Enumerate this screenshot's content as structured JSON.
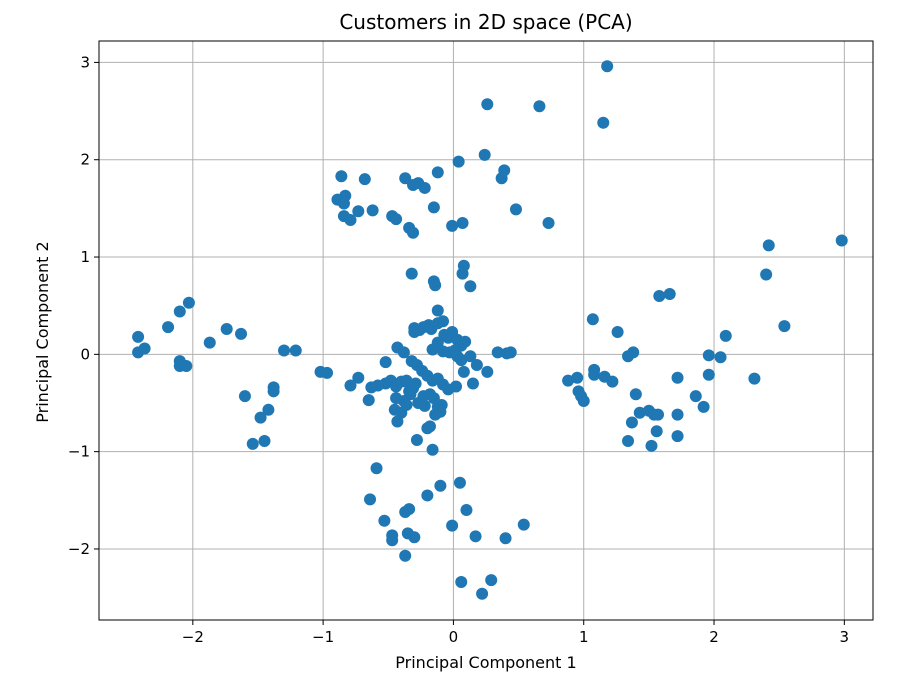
{
  "chart_data": {
    "type": "scatter",
    "title": "Customers in 2D space (PCA)",
    "xlabel": "Principal Component 1",
    "ylabel": "Principal Component 2",
    "xlim": [
      -2.72,
      3.22
    ],
    "ylim": [
      -2.73,
      3.22
    ],
    "xticks": [
      -2,
      -1,
      0,
      1,
      2,
      3
    ],
    "yticks": [
      -2,
      -1,
      0,
      1,
      2,
      3
    ],
    "grid": true,
    "marker_color": "#1f77b4",
    "points": [
      [
        -2.42,
        0.18
      ],
      [
        -2.42,
        0.02
      ],
      [
        -2.37,
        0.06
      ],
      [
        -2.19,
        0.28
      ],
      [
        -2.1,
        0.44
      ],
      [
        -2.03,
        0.53
      ],
      [
        -2.1,
        -0.07
      ],
      [
        -2.1,
        -0.12
      ],
      [
        -2.05,
        -0.12
      ],
      [
        -1.87,
        0.12
      ],
      [
        -1.74,
        0.26
      ],
      [
        -1.63,
        0.21
      ],
      [
        -1.6,
        -0.43
      ],
      [
        -1.54,
        -0.92
      ],
      [
        -1.48,
        -0.65
      ],
      [
        -1.45,
        -0.89
      ],
      [
        -1.42,
        -0.57
      ],
      [
        -1.38,
        -0.34
      ],
      [
        -1.38,
        -0.38
      ],
      [
        -1.3,
        0.04
      ],
      [
        -1.21,
        0.04
      ],
      [
        -1.02,
        -0.18
      ],
      [
        -0.97,
        -0.19
      ],
      [
        -0.89,
        1.59
      ],
      [
        -0.86,
        1.83
      ],
      [
        -0.84,
        1.55
      ],
      [
        -0.83,
        1.63
      ],
      [
        -0.84,
        1.42
      ],
      [
        -0.79,
        1.38
      ],
      [
        -0.73,
        1.47
      ],
      [
        -0.68,
        1.8
      ],
      [
        -0.62,
        1.48
      ],
      [
        -0.47,
        1.42
      ],
      [
        -0.44,
        1.39
      ],
      [
        -0.37,
        1.81
      ],
      [
        -0.34,
        1.3
      ],
      [
        -0.31,
        1.25
      ],
      [
        -0.31,
        1.74
      ],
      [
        -0.27,
        1.76
      ],
      [
        -0.22,
        1.71
      ],
      [
        -0.15,
        1.51
      ],
      [
        -0.12,
        1.87
      ],
      [
        -0.01,
        1.32
      ],
      [
        0.04,
        1.98
      ],
      [
        0.07,
        1.35
      ],
      [
        0.24,
        2.05
      ],
      [
        0.26,
        2.57
      ],
      [
        0.37,
        1.81
      ],
      [
        0.39,
        1.89
      ],
      [
        0.48,
        1.49
      ],
      [
        0.66,
        2.55
      ],
      [
        0.73,
        1.35
      ],
      [
        1.15,
        2.38
      ],
      [
        1.18,
        2.96
      ],
      [
        -0.32,
        0.83
      ],
      [
        -0.15,
        0.75
      ],
      [
        -0.14,
        0.71
      ],
      [
        0.07,
        0.83
      ],
      [
        0.08,
        0.91
      ],
      [
        0.13,
        0.7
      ],
      [
        -0.12,
        0.45
      ],
      [
        -0.3,
        0.27
      ],
      [
        -0.3,
        0.23
      ],
      [
        -0.26,
        0.25
      ],
      [
        -0.23,
        0.28
      ],
      [
        -0.19,
        0.3
      ],
      [
        -0.17,
        0.26
      ],
      [
        -0.12,
        0.32
      ],
      [
        -0.08,
        0.34
      ],
      [
        -0.07,
        0.2
      ],
      [
        -0.04,
        0.17
      ],
      [
        -0.01,
        0.23
      ],
      [
        0.03,
        0.15
      ],
      [
        0.06,
        0.09
      ],
      [
        0.09,
        0.13
      ],
      [
        -0.16,
        0.05
      ],
      [
        -0.12,
        0.12
      ],
      [
        -0.08,
        0.03
      ],
      [
        -0.03,
        0.02
      ],
      [
        0.01,
        0.04
      ],
      [
        0.03,
        -0.02
      ],
      [
        0.06,
        -0.06
      ],
      [
        0.13,
        -0.02
      ],
      [
        0.18,
        -0.11
      ],
      [
        0.26,
        -0.18
      ],
      [
        0.34,
        0.02
      ],
      [
        0.41,
        0.01
      ],
      [
        0.44,
        0.02
      ],
      [
        0.15,
        -0.3
      ],
      [
        0.08,
        -0.18
      ],
      [
        0.02,
        -0.33
      ],
      [
        -0.43,
        0.07
      ],
      [
        -0.38,
        0.02
      ],
      [
        -0.32,
        -0.07
      ],
      [
        -0.28,
        -0.11
      ],
      [
        -0.24,
        -0.17
      ],
      [
        -0.2,
        -0.22
      ],
      [
        -0.16,
        -0.27
      ],
      [
        -0.12,
        -0.25
      ],
      [
        -0.08,
        -0.31
      ],
      [
        -0.04,
        -0.36
      ],
      [
        -0.52,
        -0.08
      ],
      [
        -0.52,
        -0.3
      ],
      [
        -0.48,
        -0.27
      ],
      [
        -0.44,
        -0.33
      ],
      [
        -0.4,
        -0.28
      ],
      [
        -0.36,
        -0.28
      ],
      [
        -0.34,
        -0.38
      ],
      [
        -0.31,
        -0.35
      ],
      [
        -0.29,
        -0.3
      ],
      [
        -0.27,
        -0.5
      ],
      [
        -0.23,
        -0.43
      ],
      [
        -0.18,
        -0.41
      ],
      [
        -0.15,
        -0.45
      ],
      [
        -0.12,
        -0.54
      ],
      [
        -0.09,
        -0.52
      ],
      [
        -0.1,
        -0.59
      ],
      [
        -0.14,
        -0.62
      ],
      [
        -0.44,
        -0.45
      ],
      [
        -0.38,
        -0.48
      ],
      [
        -0.33,
        -0.41
      ],
      [
        -0.45,
        -0.57
      ],
      [
        -0.4,
        -0.6
      ],
      [
        -0.36,
        -0.52
      ],
      [
        -0.22,
        -0.53
      ],
      [
        -0.2,
        -0.76
      ],
      [
        -0.18,
        -0.74
      ],
      [
        -0.28,
        -0.88
      ],
      [
        -0.16,
        -0.98
      ],
      [
        -0.43,
        -0.69
      ],
      [
        -0.58,
        -0.32
      ],
      [
        -0.63,
        -0.34
      ],
      [
        -0.65,
        -0.47
      ],
      [
        -0.73,
        -0.24
      ],
      [
        -0.79,
        -0.32
      ],
      [
        -0.36,
        -0.27
      ],
      [
        -0.59,
        -1.17
      ],
      [
        -0.64,
        -1.49
      ],
      [
        -0.53,
        -1.71
      ],
      [
        -0.47,
        -1.86
      ],
      [
        -0.47,
        -1.91
      ],
      [
        -0.37,
        -1.62
      ],
      [
        -0.37,
        -2.07
      ],
      [
        -0.35,
        -1.84
      ],
      [
        -0.34,
        -1.59
      ],
      [
        -0.3,
        -1.88
      ],
      [
        -0.2,
        -1.45
      ],
      [
        -0.1,
        -1.35
      ],
      [
        -0.01,
        -1.76
      ],
      [
        0.05,
        -1.32
      ],
      [
        0.06,
        -2.34
      ],
      [
        0.1,
        -1.6
      ],
      [
        0.17,
        -1.87
      ],
      [
        0.22,
        -2.46
      ],
      [
        0.29,
        -2.32
      ],
      [
        0.4,
        -1.89
      ],
      [
        0.54,
        -1.75
      ],
      [
        0.88,
        -0.27
      ],
      [
        0.95,
        -0.24
      ],
      [
        0.96,
        -0.38
      ],
      [
        0.98,
        -0.43
      ],
      [
        1.0,
        -0.48
      ],
      [
        1.07,
        0.36
      ],
      [
        1.08,
        -0.16
      ],
      [
        1.08,
        -0.21
      ],
      [
        1.16,
        -0.23
      ],
      [
        1.22,
        -0.28
      ],
      [
        1.26,
        0.23
      ],
      [
        1.34,
        -0.02
      ],
      [
        1.34,
        -0.89
      ],
      [
        1.38,
        0.02
      ],
      [
        1.37,
        -0.7
      ],
      [
        1.4,
        -0.41
      ],
      [
        1.43,
        -0.6
      ],
      [
        1.5,
        -0.58
      ],
      [
        1.52,
        -0.94
      ],
      [
        1.54,
        -0.62
      ],
      [
        1.56,
        -0.79
      ],
      [
        1.57,
        -0.62
      ],
      [
        1.58,
        0.6
      ],
      [
        1.66,
        0.62
      ],
      [
        1.72,
        -0.24
      ],
      [
        1.72,
        -0.62
      ],
      [
        1.72,
        -0.84
      ],
      [
        1.86,
        -0.43
      ],
      [
        1.92,
        -0.54
      ],
      [
        1.96,
        -0.01
      ],
      [
        1.96,
        -0.21
      ],
      [
        2.05,
        -0.03
      ],
      [
        2.09,
        0.19
      ],
      [
        2.31,
        -0.25
      ],
      [
        2.4,
        0.82
      ],
      [
        2.42,
        1.12
      ],
      [
        2.54,
        0.29
      ],
      [
        2.98,
        1.17
      ]
    ]
  }
}
